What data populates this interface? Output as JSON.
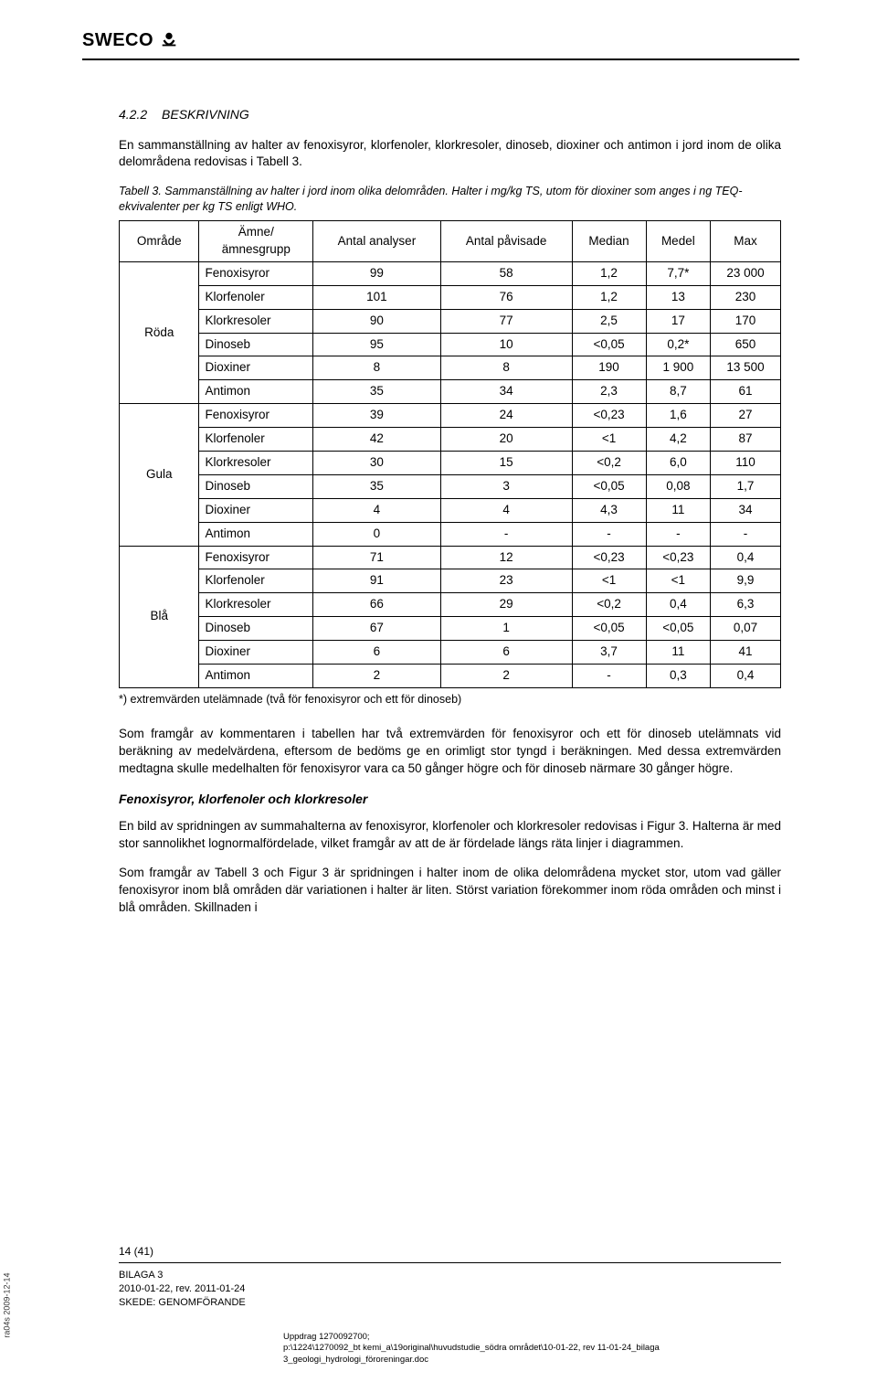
{
  "logo": {
    "text": "SWECO",
    "iconName": "sweco-icon"
  },
  "section": {
    "number": "4.2.2",
    "title": "BESKRIVNING"
  },
  "intro": "En sammanställning av halter av fenoxisyror, klorfenoler, klorkresoler, dinoseb, dioxiner och antimon i jord inom de olika delområdena redovisas i Tabell 3.",
  "tableCaption": "Tabell 3. Sammanställning av halter i jord inom olika delområden. Halter i mg/kg TS, utom för dioxiner som anges i ng TEQ-ekvivalenter per kg TS enligt WHO.",
  "table": {
    "columns": [
      "Område",
      "Ämne/ ämnesgrupp",
      "Antal analyser",
      "Antal påvisade",
      "Median",
      "Medel",
      "Max"
    ],
    "groups": [
      {
        "area": "Röda",
        "rows": [
          [
            "Fenoxisyror",
            "99",
            "58",
            "1,2",
            "7,7*",
            "23 000"
          ],
          [
            "Klorfenoler",
            "101",
            "76",
            "1,2",
            "13",
            "230"
          ],
          [
            "Klorkresoler",
            "90",
            "77",
            "2,5",
            "17",
            "170"
          ],
          [
            "Dinoseb",
            "95",
            "10",
            "<0,05",
            "0,2*",
            "650"
          ],
          [
            "Dioxiner",
            "8",
            "8",
            "190",
            "1 900",
            "13 500"
          ],
          [
            "Antimon",
            "35",
            "34",
            "2,3",
            "8,7",
            "61"
          ]
        ]
      },
      {
        "area": "Gula",
        "rows": [
          [
            "Fenoxisyror",
            "39",
            "24",
            "<0,23",
            "1,6",
            "27"
          ],
          [
            "Klorfenoler",
            "42",
            "20",
            "<1",
            "4,2",
            "87"
          ],
          [
            "Klorkresoler",
            "30",
            "15",
            "<0,2",
            "6,0",
            "110"
          ],
          [
            "Dinoseb",
            "35",
            "3",
            "<0,05",
            "0,08",
            "1,7"
          ],
          [
            "Dioxiner",
            "4",
            "4",
            "4,3",
            "11",
            "34"
          ],
          [
            "Antimon",
            "0",
            "-",
            "-",
            "-",
            "-"
          ]
        ]
      },
      {
        "area": "Blå",
        "rows": [
          [
            "Fenoxisyror",
            "71",
            "12",
            "<0,23",
            "<0,23",
            "0,4"
          ],
          [
            "Klorfenoler",
            "91",
            "23",
            "<1",
            "<1",
            "9,9"
          ],
          [
            "Klorkresoler",
            "66",
            "29",
            "<0,2",
            "0,4",
            "6,3"
          ],
          [
            "Dinoseb",
            "67",
            "1",
            "<0,05",
            "<0,05",
            "0,07"
          ],
          [
            "Dioxiner",
            "6",
            "6",
            "3,7",
            "11",
            "41"
          ],
          [
            "Antimon",
            "2",
            "2",
            "-",
            "0,3",
            "0,4"
          ]
        ]
      }
    ],
    "footnote": "*) extremvärden utelämnade (två för fenoxisyror och ett för dinoseb)",
    "border_color": "#000000",
    "background_color": "#ffffff",
    "cell_padding": "3px 6px",
    "font_size": 13.5
  },
  "body": {
    "p1": "Som framgår av kommentaren i tabellen har två extremvärden för fenoxisyror och ett för dinoseb utelämnats vid beräkning av medelvärdena, eftersom de bedöms ge en orimligt stor tyngd i beräkningen. Med dessa extremvärden medtagna skulle medelhalten för fenoxisyror vara ca 50 gånger högre och för dinoseb närmare 30 gånger högre.",
    "sub": "Fenoxisyror, klorfenoler och klorkresoler",
    "p2": "En bild av spridningen av summahalterna av fenoxisyror, klorfenoler och klorkresoler redovisas i Figur 3. Halterna är med stor sannolikhet lognormalfördelade, vilket framgår av att de är fördelade längs räta linjer i diagrammen.",
    "p3": "Som framgår av Tabell 3 och Figur 3 är spridningen i halter inom de olika delområdena mycket stor, utom vad gäller fenoxisyror inom blå områden där variationen i halter är liten. Störst variation förekommer inom röda områden och minst i blå områden. Skillnaden i"
  },
  "footer": {
    "pageNum": "14 (41)",
    "line1": "BILAGA 3",
    "line2": "2010-01-22, rev. 2011-01-24",
    "line3": "SKEDE: GENOMFÖRANDE",
    "pathLabel": "Uppdrag 1270092700;",
    "path": "p:\\1224\\1270092_bt kemi_a\\19original\\huvudstudie_södra området\\10-01-22, rev 11-01-24_bilaga 3_geologi_hydrologi_föroreningar.doc"
  },
  "sideCode": "ra04s 2009-12-14"
}
